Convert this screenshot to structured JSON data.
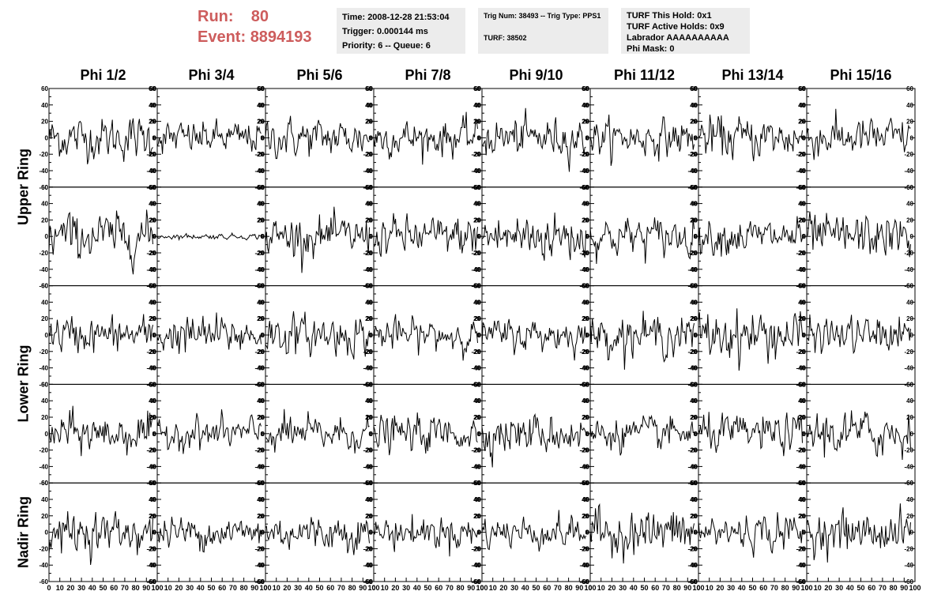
{
  "header": {
    "run_label": "Run:",
    "run_value": "80",
    "event_label": "Event:",
    "event_value": "8894193",
    "colors": {
      "run_text": "#cd5c5c",
      "panel_bg": "#ececec"
    }
  },
  "info_panels": [
    {
      "lines": [
        "Time: 2008-12-28 21:53:04",
        "Trigger: 0.000144 ms",
        "Priority: 6 -- Queue: 6"
      ]
    },
    {
      "lines": [
        "Trig Num: 38493 -- Trig Type: PPS1",
        "",
        "TURF: 38502"
      ]
    },
    {
      "lines": [
        "TURF This Hold: 0x1",
        "TURF Active Holds: 0x9",
        "Labrador AAAAAAAAAA",
        "Phi Mask: 0"
      ]
    }
  ],
  "chart_data": {
    "type": "line",
    "columns": [
      "Phi 1/2",
      "Phi 3/4",
      "Phi 5/6",
      "Phi 7/8",
      "Phi 9/10",
      "Phi 11/12",
      "Phi 13/14",
      "Phi 15/16"
    ],
    "rings": [
      {
        "name": "Upper Ring",
        "rows": [
          0,
          1
        ]
      },
      {
        "name": "Lower Ring",
        "rows": [
          2,
          3
        ]
      },
      {
        "name": "Nadir Ring",
        "rows": [
          4
        ]
      }
    ],
    "xlim": [
      0,
      100
    ],
    "ylim": [
      -60,
      60
    ],
    "xticks": [
      0,
      10,
      20,
      30,
      40,
      50,
      60,
      70,
      80,
      90,
      100
    ],
    "yticks": [
      -60,
      -40,
      -20,
      0,
      20,
      40,
      60
    ],
    "x_tick_labels": [
      "0",
      "10",
      "20",
      "30",
      "40",
      "50",
      "60",
      "70",
      "80",
      "90",
      "100"
    ],
    "y_tick_labels": [
      "-60",
      "-40",
      "-20",
      "0",
      "20",
      "40",
      "60"
    ],
    "samples_per_trace": 100,
    "typical_amplitude": [
      [
        12,
        9,
        11,
        10,
        11,
        10,
        12,
        11
      ],
      [
        13,
        1.5,
        11,
        11,
        14,
        11,
        10,
        12
      ],
      [
        10,
        11,
        11,
        9,
        9,
        11,
        14,
        10
      ],
      [
        11,
        9,
        10,
        10,
        11,
        9,
        10,
        13
      ],
      [
        11,
        9,
        10,
        9,
        9,
        13,
        10,
        11
      ]
    ]
  }
}
